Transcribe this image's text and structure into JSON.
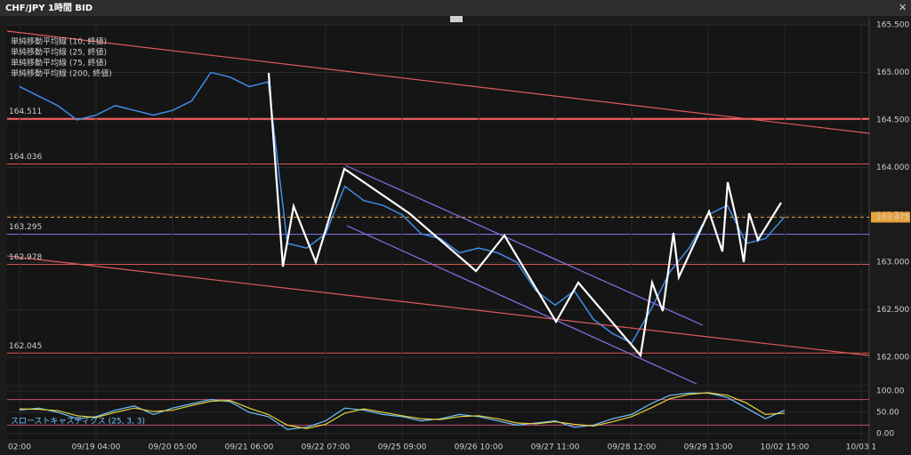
{
  "chart_data": [
    {
      "type": "line",
      "title": "CHF/JPY 1時間 BID",
      "categories": [
        "02:00",
        null,
        null,
        null,
        "09/19 04:00",
        null,
        null,
        null,
        "09/20 05:00",
        null,
        null,
        null,
        "09/21 06:00",
        null,
        null,
        null,
        "09/22 07:00",
        null,
        null,
        null,
        "09/25 09:00",
        null,
        null,
        null,
        "09/26 10:00",
        null,
        null,
        null,
        "09/27 11:00",
        null,
        null,
        null,
        "09/28 12:00",
        null,
        null,
        null,
        "09/29 13:00",
        null,
        null,
        null,
        "10/02 15:00",
        null,
        null,
        null,
        "10/03 1"
      ],
      "values": [
        164.85,
        164.75,
        164.65,
        164.5,
        164.55,
        164.65,
        164.6,
        164.55,
        164.6,
        164.7,
        165.0,
        164.95,
        164.85,
        164.9,
        163.2,
        163.15,
        163.3,
        163.8,
        163.65,
        163.6,
        163.5,
        163.3,
        163.25,
        163.1,
        163.15,
        163.1,
        163.0,
        162.7,
        162.55,
        162.7,
        162.4,
        162.25,
        162.15,
        162.5,
        162.9,
        163.15,
        163.5,
        163.6,
        163.2,
        163.25,
        163.48,
        null,
        null,
        null,
        null
      ],
      "color": "#3d8ee8",
      "ylim": [
        161.72,
        165.5
      ],
      "yticks": [
        {
          "value": 162,
          "label": "162.000"
        },
        {
          "value": 162.5,
          "label": "162.500"
        },
        {
          "value": 163,
          "label": "163.000"
        },
        {
          "value": 163.5,
          "label": "163.500"
        },
        {
          "value": 164,
          "label": "164.000"
        },
        {
          "value": 164.5,
          "label": "164.500"
        },
        {
          "value": 165,
          "label": "165.000"
        },
        {
          "value": 165.5,
          "label": "165.500"
        }
      ],
      "grid": true,
      "levels": [
        {
          "value": 164.511,
          "color": "#ff6161"
        },
        {
          "value": 164.036,
          "color": "#d9534f"
        },
        {
          "value": 163.295,
          "color": "#8577ee"
        },
        {
          "value": 162.978,
          "color": "#d9534f"
        },
        {
          "value": 162.045,
          "color": "#d9534f"
        }
      ],
      "current_price": {
        "value": 163.475,
        "color": "#e8a23a"
      },
      "legend": [
        {
          "label": "単純移動平均線 (10, 終値)",
          "color": "#e8a23a"
        },
        {
          "label": "単純移動平均線 (25, 終値)",
          "color": "#3fbf3f"
        },
        {
          "label": "単純移動平均線 (75, 終値)",
          "color": "#8aa7c7"
        },
        {
          "label": "単純移動平均線 (200, 終値)",
          "color": "#3a7bd5"
        }
      ]
    },
    {
      "type": "line",
      "title": "スローストキャスティクス (25, 3, 3)",
      "series": [
        {
          "color": "#6ec3ff",
          "values": [
            55,
            60,
            50,
            35,
            40,
            55,
            65,
            45,
            60,
            70,
            80,
            75,
            50,
            40,
            10,
            15,
            30,
            60,
            55,
            45,
            40,
            30,
            35,
            45,
            40,
            30,
            20,
            25,
            30,
            15,
            20,
            35,
            45,
            70,
            90,
            95,
            95,
            85,
            60,
            35,
            55,
            null,
            null,
            null,
            null
          ]
        },
        {
          "color": "#e8d23a",
          "values": [
            58,
            57,
            54,
            42,
            38,
            50,
            60,
            52,
            55,
            66,
            76,
            78,
            60,
            45,
            20,
            12,
            22,
            48,
            58,
            50,
            42,
            35,
            33,
            40,
            42,
            35,
            25,
            23,
            28,
            22,
            18,
            28,
            40,
            60,
            82,
            92,
            96,
            90,
            72,
            45,
            48,
            null,
            null,
            null,
            null
          ]
        }
      ],
      "ylim": [
        -12.5,
        108.3
      ],
      "yticks": [
        {
          "value": 0,
          "label": "0.00"
        },
        {
          "value": 50,
          "label": "50.00"
        },
        {
          "value": 100,
          "label": "100.00"
        }
      ],
      "levels": [
        80,
        20
      ]
    }
  ]
}
